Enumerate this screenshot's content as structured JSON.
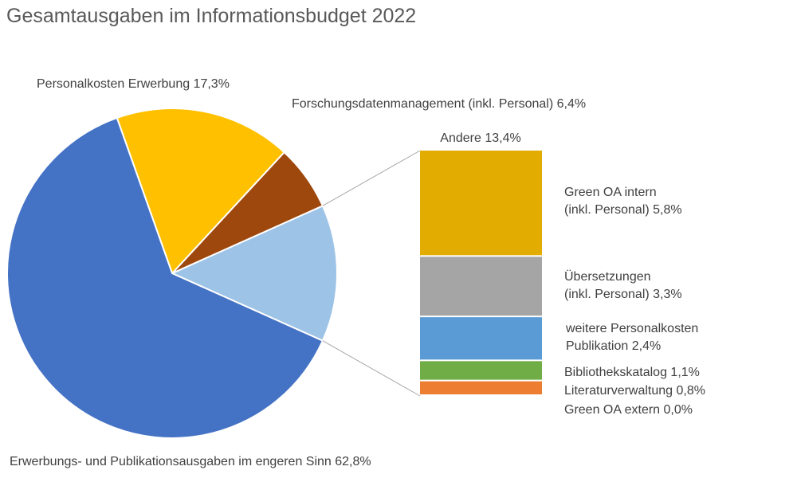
{
  "chart_data": {
    "type": "bar-of-pie",
    "title": "Gesamtausgaben im Informationsbudget 2022",
    "pie": {
      "slices": [
        {
          "label": "Erwerbungs- und Publikationsausgaben im engeren Sinn 62,8%",
          "value": 62.8,
          "color": "#4472C4"
        },
        {
          "label": "Personalkosten Erwerbung 17,3%",
          "value": 17.3,
          "color": "#FFC000"
        },
        {
          "label": "Forschungsdatenmanagement (inkl. Personal) 6,4%",
          "value": 6.4,
          "color": "#9E480E"
        },
        {
          "label": "Andere 13,4%",
          "value": 13.4,
          "color": "#9DC3E6"
        }
      ]
    },
    "bar": {
      "label": "Andere 13,4%",
      "segments": [
        {
          "label_lines": [
            "Green OA intern",
            "(inkl. Personal) 5,8%"
          ],
          "value": 5.8,
          "color": "#E2AC00"
        },
        {
          "label_lines": [
            "Übersetzungen",
            "(inkl. Personal) 3,3%"
          ],
          "value": 3.3,
          "color": "#A5A5A5"
        },
        {
          "label_lines": [
            "weitere Personalkosten",
            "Publikation 2,4%"
          ],
          "value": 2.4,
          "color": "#5B9BD5"
        },
        {
          "label_lines": [
            "Bibliothekskatalog 1,1%"
          ],
          "value": 1.1,
          "color": "#70AD47"
        },
        {
          "label_lines": [
            "Literaturverwaltung  0,8%"
          ],
          "value": 0.8,
          "color": "#ED7D31"
        },
        {
          "label_lines": [
            "Green OA extern 0,0%"
          ],
          "value": 0.0,
          "color": "#4472C4"
        }
      ]
    }
  }
}
